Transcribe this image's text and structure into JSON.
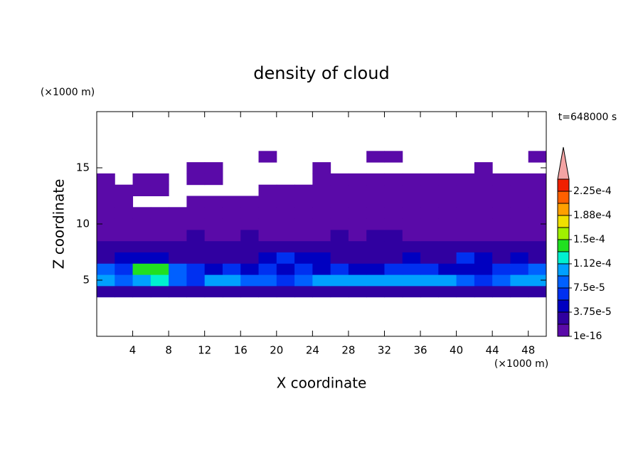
{
  "chart_data": {
    "type": "contour",
    "title": "density of cloud",
    "x_label": "X coordinate",
    "y_label": "Z coordinate",
    "x_unit": "(×1000 m)",
    "y_unit": "(×1000 m)",
    "annotation": "t=648000 s",
    "xlim": [
      0,
      50
    ],
    "ylim": [
      0,
      20
    ],
    "xticks": [
      4,
      8,
      12,
      16,
      20,
      24,
      28,
      32,
      36,
      40,
      44,
      48
    ],
    "yticks": [
      5,
      10,
      15
    ],
    "x": [
      1,
      3,
      5,
      7,
      9,
      11,
      13,
      15,
      17,
      19,
      21,
      23,
      25,
      27,
      29,
      31,
      33,
      35,
      37,
      39,
      41,
      43,
      45,
      47,
      49
    ],
    "y": [
      4,
      5,
      6,
      7,
      8,
      9,
      10,
      11,
      12,
      13,
      14,
      15,
      16
    ],
    "z": [
      [
        3e-05,
        2.5e-05,
        3e-05,
        3e-05,
        2.5e-05,
        3e-05,
        3e-05,
        2.5e-05,
        3e-05,
        2.5e-05,
        2.5e-05,
        2e-05,
        3e-05,
        3e-05,
        3e-05,
        2.5e-05,
        3e-05,
        3e-05,
        3e-05,
        3e-05,
        2.5e-05,
        2.5e-05,
        3e-05,
        3e-05,
        3e-05
      ],
      [
        0.000105,
        9e-05,
        0.00011,
        0.000115,
        9e-05,
        7e-05,
        9.5e-05,
        0.0001,
        9e-05,
        8e-05,
        7.5e-05,
        8.5e-05,
        9.5e-05,
        0.000105,
        0.0001,
        9.5e-05,
        0.0001,
        0.000105,
        0.00011,
        0.000105,
        8e-05,
        7e-05,
        9e-05,
        0.000105,
        0.00011
      ],
      [
        8e-05,
        7e-05,
        0.000145,
        0.00014,
        9e-05,
        6e-05,
        5e-05,
        6e-05,
        5.5e-05,
        6e-05,
        5e-05,
        6e-05,
        5.5e-05,
        6e-05,
        5e-05,
        5.5e-05,
        6e-05,
        6.5e-05,
        6e-05,
        5.5e-05,
        4.5e-05,
        5e-05,
        6e-05,
        7e-05,
        8e-05
      ],
      [
        3.5e-05,
        4e-05,
        4.5e-05,
        4e-05,
        3e-05,
        3.5e-05,
        3e-05,
        3.5e-05,
        3e-05,
        4e-05,
        6e-05,
        5e-05,
        4e-05,
        3e-05,
        3.5e-05,
        3e-05,
        3.5e-05,
        4e-05,
        3.5e-05,
        3e-05,
        6e-05,
        4e-05,
        3.5e-05,
        4e-05,
        3.5e-05
      ],
      [
        2e-05,
        2.5e-05,
        2e-05,
        2.5e-05,
        2e-05,
        2e-05,
        2.5e-05,
        2e-05,
        2e-05,
        2.5e-05,
        3e-05,
        2.5e-05,
        2e-05,
        2e-05,
        2.5e-05,
        2e-05,
        2e-05,
        2.5e-05,
        2e-05,
        2e-05,
        2.5e-05,
        2.5e-05,
        2e-05,
        2e-05,
        2e-05
      ],
      [
        1e-05,
        1.2e-05,
        1e-05,
        1.5e-05,
        1.2e-05,
        2e-05,
        1.5e-05,
        1.2e-05,
        2e-05,
        1.5e-05,
        1e-05,
        1.2e-05,
        1.5e-05,
        2e-05,
        1.5e-05,
        2e-05,
        2e-05,
        1.5e-05,
        1.2e-05,
        1.5e-05,
        1e-05,
        1.2e-05,
        1e-05,
        1.2e-05,
        1e-05
      ],
      [
        5e-06,
        5e-06,
        5e-06,
        5e-06,
        5e-06,
        5e-06,
        5e-06,
        5e-06,
        5e-06,
        5e-06,
        5e-06,
        5e-06,
        5e-06,
        5e-06,
        5e-06,
        5e-06,
        5e-06,
        5e-06,
        5e-06,
        5e-06,
        5e-06,
        5e-06,
        5e-06,
        5e-06,
        5e-06
      ],
      [
        3e-06,
        3e-06,
        3e-06,
        3e-06,
        3e-06,
        3e-06,
        3e-06,
        3e-06,
        3e-06,
        3e-06,
        3e-06,
        3e-06,
        3e-06,
        3e-06,
        3e-06,
        3e-06,
        3e-06,
        3e-06,
        3e-06,
        3e-06,
        3e-06,
        3e-06,
        3e-06,
        3e-06,
        3e-06
      ],
      [
        2e-06,
        2e-06,
        null,
        null,
        null,
        2e-06,
        2e-06,
        2e-06,
        2e-06,
        2e-06,
        2e-06,
        2e-06,
        2e-06,
        2e-06,
        2e-06,
        2e-06,
        2e-06,
        2e-06,
        2e-06,
        2e-06,
        2e-06,
        2e-06,
        2e-06,
        2e-06,
        2e-06
      ],
      [
        1e-06,
        1e-06,
        1e-06,
        1e-06,
        null,
        null,
        null,
        null,
        null,
        1e-06,
        1e-06,
        1e-06,
        1e-06,
        1e-06,
        1e-06,
        1e-06,
        1e-06,
        1e-06,
        1e-06,
        1e-06,
        1e-06,
        1e-06,
        1e-06,
        1e-06,
        1e-06
      ],
      [
        1e-06,
        null,
        1e-06,
        1e-06,
        null,
        1e-06,
        1e-06,
        null,
        null,
        null,
        null,
        null,
        1e-06,
        1e-06,
        1e-06,
        1e-06,
        1e-06,
        1e-06,
        1e-06,
        1e-06,
        1e-06,
        1e-06,
        1e-06,
        1e-06,
        1e-06
      ],
      [
        null,
        null,
        null,
        null,
        null,
        1e-06,
        1e-06,
        null,
        null,
        null,
        null,
        null,
        1e-06,
        null,
        null,
        null,
        null,
        null,
        null,
        null,
        null,
        1e-06,
        null,
        null,
        null
      ],
      [
        null,
        null,
        null,
        null,
        null,
        null,
        null,
        null,
        null,
        1e-06,
        null,
        null,
        null,
        null,
        null,
        1e-06,
        1e-06,
        null,
        null,
        null,
        null,
        null,
        null,
        null,
        1e-06
      ]
    ],
    "colorbar": {
      "lim": [
        1e-16,
        0.00024375
      ],
      "colors": [
        "#5a0aa8",
        "#3000a0",
        "#0000c0",
        "#0030f0",
        "#0060ff",
        "#00a0ff",
        "#00f0d0",
        "#20e020",
        "#a0f000",
        "#f0e000",
        "#ffa000",
        "#ff6000",
        "#f02000"
      ],
      "extend_color": "#f4a4a4",
      "ticks": [
        {
          "value": 1e-16,
          "label": "1e-16"
        },
        {
          "value": 3.75e-05,
          "label": "3.75e-5"
        },
        {
          "value": 7.5e-05,
          "label": "7.5e-5"
        },
        {
          "value": 0.0001125,
          "label": "1.12e-4"
        },
        {
          "value": 0.00015,
          "label": "1.5e-4"
        },
        {
          "value": 0.0001875,
          "label": "1.88e-4"
        },
        {
          "value": 0.000225,
          "label": "2.25e-4"
        }
      ]
    }
  }
}
